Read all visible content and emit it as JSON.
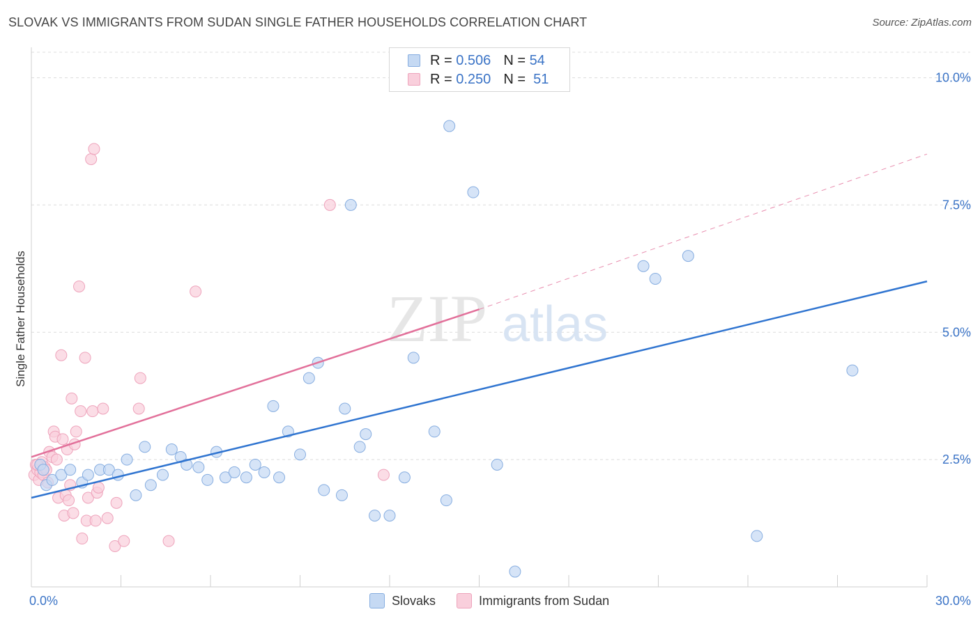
{
  "header": {
    "title": "SLOVAK VS IMMIGRANTS FROM SUDAN SINGLE FATHER HOUSEHOLDS CORRELATION CHART",
    "source": "Source: ZipAtlas.com"
  },
  "watermark": {
    "part1": "ZIP",
    "part2": "atlas"
  },
  "legend": {
    "r_label": "R =",
    "n_label": "N =",
    "entries": [
      {
        "r": "0.506",
        "n": "54",
        "color": "#aac8ef"
      },
      {
        "r": "0.250",
        "n": "51",
        "color": "#f5b5c8"
      }
    ]
  },
  "colors": {
    "blue_fill": "#c5d9f3",
    "blue_stroke": "#86ade0",
    "blue_line": "#2f74d0",
    "pink_fill": "#f9cfdc",
    "pink_stroke": "#eea3bb",
    "pink_line": "#e2709a",
    "grid": "#dcdcdc",
    "tick_label": "#3a73c6"
  },
  "chart_data": {
    "type": "scatter",
    "ylabel": "Single Father Households",
    "xlim": [
      0,
      30
    ],
    "ylim": [
      0,
      10.5
    ],
    "y_ticks": [
      {
        "value": 2.5,
        "label": "2.5%"
      },
      {
        "value": 5.0,
        "label": "5.0%"
      },
      {
        "value": 7.5,
        "label": "7.5%"
      },
      {
        "value": 10.0,
        "label": "10.0%"
      }
    ],
    "x_tick_labels": [
      {
        "value": 0,
        "label": "0.0%"
      },
      {
        "value": 30,
        "label": "30.0%"
      }
    ],
    "x_minor_ticks": [
      0,
      3,
      6,
      9,
      12,
      15,
      18,
      21,
      24,
      27,
      30
    ],
    "series": [
      {
        "name": "Slovaks",
        "points": [
          [
            0.3,
            2.4
          ],
          [
            0.4,
            2.3
          ],
          [
            0.5,
            2.0
          ],
          [
            0.7,
            2.1
          ],
          [
            1.0,
            2.2
          ],
          [
            1.3,
            2.3
          ],
          [
            1.7,
            2.05
          ],
          [
            1.9,
            2.2
          ],
          [
            2.3,
            2.3
          ],
          [
            2.6,
            2.3
          ],
          [
            2.9,
            2.2
          ],
          [
            3.2,
            2.5
          ],
          [
            3.5,
            1.8
          ],
          [
            3.8,
            2.75
          ],
          [
            4.0,
            2.0
          ],
          [
            4.4,
            2.2
          ],
          [
            4.7,
            2.7
          ],
          [
            5.0,
            2.55
          ],
          [
            5.2,
            2.4
          ],
          [
            5.6,
            2.35
          ],
          [
            5.9,
            2.1
          ],
          [
            6.2,
            2.65
          ],
          [
            6.5,
            2.15
          ],
          [
            6.8,
            2.25
          ],
          [
            7.2,
            2.15
          ],
          [
            7.5,
            2.4
          ],
          [
            7.8,
            2.25
          ],
          [
            8.1,
            3.55
          ],
          [
            8.3,
            2.15
          ],
          [
            8.6,
            3.05
          ],
          [
            9.0,
            2.6
          ],
          [
            9.3,
            4.1
          ],
          [
            9.6,
            4.4
          ],
          [
            9.8,
            1.9
          ],
          [
            10.4,
            1.8
          ],
          [
            10.5,
            3.5
          ],
          [
            11.0,
            2.75
          ],
          [
            11.2,
            3.0
          ],
          [
            11.5,
            1.4
          ],
          [
            12.0,
            1.4
          ],
          [
            12.5,
            2.15
          ],
          [
            12.8,
            4.5
          ],
          [
            13.5,
            3.05
          ],
          [
            13.9,
            1.7
          ],
          [
            14.0,
            9.05
          ],
          [
            14.8,
            7.75
          ],
          [
            15.6,
            2.4
          ],
          [
            16.2,
            0.3
          ],
          [
            10.7,
            7.5
          ],
          [
            20.5,
            6.3
          ],
          [
            20.9,
            6.05
          ],
          [
            22.0,
            6.5
          ],
          [
            24.3,
            1.0
          ],
          [
            27.5,
            4.25
          ]
        ]
      },
      {
        "name": "Immigrants from Sudan",
        "points": [
          [
            0.1,
            2.2
          ],
          [
            0.15,
            2.4
          ],
          [
            0.2,
            2.3
          ],
          [
            0.25,
            2.1
          ],
          [
            0.3,
            2.25
          ],
          [
            0.35,
            2.45
          ],
          [
            0.4,
            2.2
          ],
          [
            0.45,
            2.35
          ],
          [
            0.5,
            2.3
          ],
          [
            0.55,
            2.05
          ],
          [
            0.6,
            2.65
          ],
          [
            0.7,
            2.55
          ],
          [
            0.75,
            3.05
          ],
          [
            0.8,
            2.95
          ],
          [
            0.85,
            2.5
          ],
          [
            0.9,
            1.75
          ],
          [
            1.0,
            4.55
          ],
          [
            1.05,
            2.9
          ],
          [
            1.1,
            1.4
          ],
          [
            1.15,
            1.8
          ],
          [
            1.2,
            2.7
          ],
          [
            1.25,
            1.7
          ],
          [
            1.3,
            2.0
          ],
          [
            1.35,
            3.7
          ],
          [
            1.4,
            1.45
          ],
          [
            1.5,
            3.05
          ],
          [
            1.45,
            2.8
          ],
          [
            1.6,
            5.9
          ],
          [
            1.65,
            3.45
          ],
          [
            1.7,
            0.95
          ],
          [
            1.8,
            4.5
          ],
          [
            1.85,
            1.3
          ],
          [
            1.9,
            1.75
          ],
          [
            2.0,
            8.4
          ],
          [
            2.05,
            3.45
          ],
          [
            2.1,
            8.6
          ],
          [
            2.15,
            1.3
          ],
          [
            2.2,
            1.85
          ],
          [
            2.25,
            1.95
          ],
          [
            2.4,
            3.5
          ],
          [
            2.55,
            1.35
          ],
          [
            2.8,
            0.8
          ],
          [
            2.85,
            1.65
          ],
          [
            3.1,
            0.9
          ],
          [
            3.6,
            3.5
          ],
          [
            3.65,
            4.1
          ],
          [
            4.6,
            0.9
          ],
          [
            5.5,
            5.8
          ],
          [
            10.0,
            7.5
          ],
          [
            11.8,
            2.2
          ],
          [
            0.2,
            2.4
          ]
        ]
      }
    ],
    "trendlines": [
      {
        "series": "Slovaks",
        "x": [
          0,
          30
        ],
        "y": [
          1.75,
          6.0
        ],
        "style": "solid"
      },
      {
        "series": "Immigrants from Sudan",
        "x": [
          0,
          15
        ],
        "y": [
          2.55,
          5.45
        ],
        "style": "solid"
      },
      {
        "series": "Immigrants from Sudan",
        "x": [
          15,
          30
        ],
        "y": [
          5.45,
          8.5
        ],
        "style": "dashed"
      }
    ],
    "grid": true,
    "legend_position": "top-center"
  }
}
